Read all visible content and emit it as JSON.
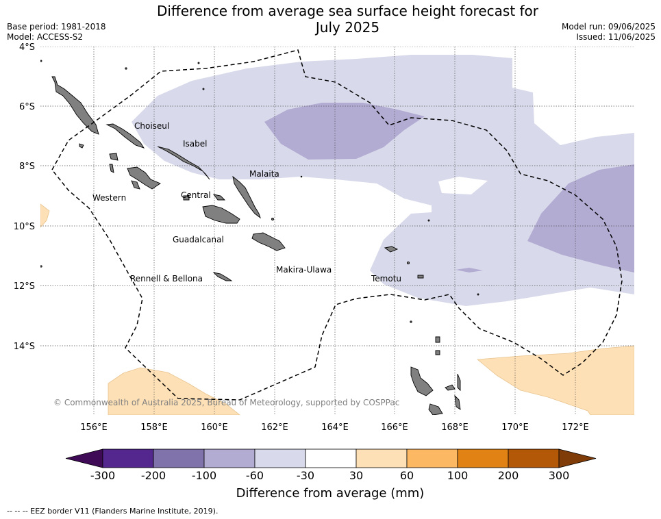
{
  "title_line1": "Difference from average sea surface height forecast for",
  "title_line2": "July 2025",
  "base_period": "Base period: 1981-2018",
  "model": "Model: ACCESS-S2",
  "model_run": "Model run: 09/06/2025",
  "issued": "Issued: 11/06/2025",
  "copyright": "© Commonwealth of Australia 2025, Bureau of Meteorology, supported by COSPPac",
  "lon_labels": [
    "156°E",
    "158°E",
    "160°E",
    "162°E",
    "164°E",
    "166°E",
    "168°E",
    "170°E",
    "172°E"
  ],
  "lat_labels": [
    "4°S",
    "6°S",
    "8°S",
    "10°S",
    "12°S",
    "14°S"
  ],
  "places": {
    "choiseul": "Choiseul",
    "isabel": "Isabel",
    "malaita": "Malaita",
    "western": "Western",
    "central": "Central",
    "guadalcanal": "Guadalcanal",
    "makira": "Makira-Ulawa",
    "rennell": "Rennell & Bellona",
    "temotu": "Temotu"
  },
  "colorbar": {
    "label": "Difference from average (mm)",
    "ticks": [
      "-300",
      "-200",
      "-100",
      "-60",
      "-30",
      "30",
      "60",
      "100",
      "200",
      "300"
    ],
    "colors": {
      "below": "#3f0a56",
      "c1": "#54278f",
      "c2": "#8073ac",
      "c3": "#b2abd2",
      "c4": "#d8daeb",
      "c5": "#ffffff",
      "c6": "#fee0b6",
      "c7": "#fdb863",
      "c8": "#e08214",
      "c9": "#b35806",
      "above": "#7f3b08"
    }
  },
  "land_color": "#808080",
  "footer": "--  --  -- EEZ border V11 (Flanders Marine Institute, 2019)."
}
